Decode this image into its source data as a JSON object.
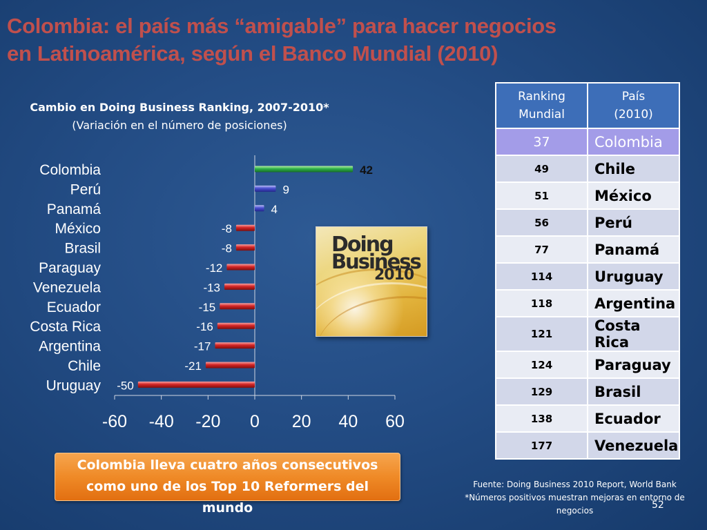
{
  "slide": {
    "title_line1": "Colombia: el país más “amigable” para hacer negocios",
    "title_line2": "en Latinoamérica, según el Banco Mundial (2010)",
    "page_number": "52"
  },
  "chart_data": {
    "type": "bar",
    "orientation": "horizontal",
    "title": "Cambio en Doing Business Ranking, 2007-2010*",
    "subtitle": "(Variación en el número de posiciones)",
    "categories": [
      "Colombia",
      "Perú",
      "Panamá",
      "México",
      "Brasil",
      "Paraguay",
      "Venezuela",
      "Ecuador",
      "Costa Rica",
      "Argentina",
      "Chile",
      "Uruguay"
    ],
    "values": [
      42,
      9,
      4,
      -8,
      -8,
      -12,
      -13,
      -15,
      -16,
      -17,
      -21,
      -50
    ],
    "data_labels": [
      "42",
      "9",
      "4",
      "-8",
      "-8",
      "-12",
      "-13",
      "-15",
      "-16",
      "-17",
      "-21",
      "-50"
    ],
    "xlim": [
      -60,
      60
    ],
    "xticks": [
      -60,
      -40,
      -20,
      0,
      20,
      40,
      60
    ],
    "xtick_labels": [
      "-60",
      "-40",
      "-20",
      "0",
      "20",
      "40",
      "60"
    ],
    "xlabel": "",
    "ylabel": "",
    "grid": false,
    "colors": {
      "highlight": "#2fb34a",
      "positive": "#4a4fd0",
      "negative": "#d42525"
    }
  },
  "logo": {
    "line1": "Doing",
    "line2": "Business",
    "year": "2010"
  },
  "ranking_table": {
    "headers": [
      "Ranking\nMundial",
      "País\n(2010)"
    ],
    "header_rank_line1": "Ranking",
    "header_rank_line2": "Mundial",
    "header_pais_line1": "País",
    "header_pais_line2": "(2010)",
    "rows": [
      {
        "rank": "37",
        "pais": "Colombia"
      },
      {
        "rank": "49",
        "pais": "Chile"
      },
      {
        "rank": "51",
        "pais": "México"
      },
      {
        "rank": "56",
        "pais": "Perú"
      },
      {
        "rank": "77",
        "pais": "Panamá"
      },
      {
        "rank": "114",
        "pais": "Uruguay"
      },
      {
        "rank": "118",
        "pais": "Argentina"
      },
      {
        "rank": "121",
        "pais": "Costa Rica"
      },
      {
        "rank": "124",
        "pais": "Paraguay"
      },
      {
        "rank": "129",
        "pais": "Brasil"
      },
      {
        "rank": "138",
        "pais": "Ecuador"
      },
      {
        "rank": "177",
        "pais": "Venezuela"
      }
    ]
  },
  "callout": {
    "line1": "Colombia lleva cuatro años consecutivos",
    "line2": "como uno de los Top 10 Reformers  del",
    "line3": "mundo"
  },
  "source": {
    "line1": "Fuente: Doing Business 2010 Report, World Bank",
    "line2": "*Números positivos muestran mejoras en entorno de",
    "line3": "negocios"
  }
}
